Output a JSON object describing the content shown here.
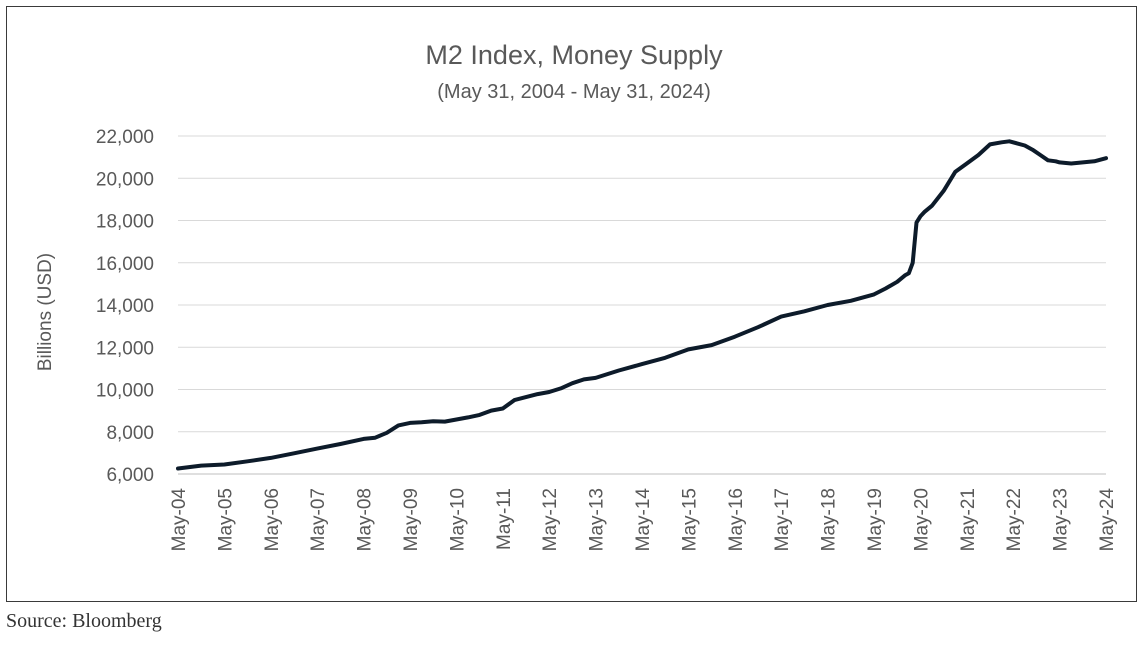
{
  "source": "Source: Bloomberg",
  "chart_data": {
    "type": "line",
    "title": "M2 Index, Money Supply",
    "subtitle": "(May 31, 2004 - May 31, 2024)",
    "ylabel": "Billions (USD)",
    "xlabel": "",
    "ylim": [
      6000,
      22000
    ],
    "yticks": [
      6000,
      8000,
      10000,
      12000,
      14000,
      16000,
      18000,
      20000,
      22000
    ],
    "ytick_labels": [
      "6,000",
      "8,000",
      "10,000",
      "12,000",
      "14,000",
      "16,000",
      "18,000",
      "20,000",
      "22,000"
    ],
    "xticks": [
      "May-04",
      "May-05",
      "May-06",
      "May-07",
      "May-08",
      "May-09",
      "May-10",
      "May-11",
      "May-12",
      "May-13",
      "May-14",
      "May-15",
      "May-16",
      "May-17",
      "May-18",
      "May-19",
      "May-20",
      "May-21",
      "May-22",
      "May-23",
      "May-24"
    ],
    "grid": true,
    "legend": "none",
    "color": "#0d1b2a",
    "series": [
      {
        "x": [
          "2004-05",
          "2004-11",
          "2005-05",
          "2005-11",
          "2006-05",
          "2006-11",
          "2007-05",
          "2007-11",
          "2008-05",
          "2008-08",
          "2008-11",
          "2009-02",
          "2009-05",
          "2009-08",
          "2009-11",
          "2010-02",
          "2010-05",
          "2010-08",
          "2010-11",
          "2011-02",
          "2011-05",
          "2011-08",
          "2011-11",
          "2012-02",
          "2012-05",
          "2012-08",
          "2012-11",
          "2013-02",
          "2013-05",
          "2013-11",
          "2014-05",
          "2014-11",
          "2015-05",
          "2015-11",
          "2016-05",
          "2016-11",
          "2017-05",
          "2017-11",
          "2018-05",
          "2018-11",
          "2019-05",
          "2019-08",
          "2019-11",
          "2020-01",
          "2020-02",
          "2020-03",
          "2020-04",
          "2020-05",
          "2020-06",
          "2020-08",
          "2020-11",
          "2021-02",
          "2021-05",
          "2021-08",
          "2021-11",
          "2022-02",
          "2022-04",
          "2022-06",
          "2022-08",
          "2022-10",
          "2022-12",
          "2023-02",
          "2023-04",
          "2023-05",
          "2023-08",
          "2023-11",
          "2024-02",
          "2024-05"
        ],
        "values": [
          6260,
          6400,
          6450,
          6600,
          6760,
          6980,
          7200,
          7420,
          7660,
          7720,
          7950,
          8300,
          8420,
          8450,
          8500,
          8480,
          8580,
          8680,
          8800,
          9000,
          9100,
          9500,
          9640,
          9780,
          9880,
          10050,
          10300,
          10480,
          10550,
          10900,
          11200,
          11500,
          11900,
          12100,
          12500,
          12950,
          13450,
          13700,
          14000,
          14200,
          14500,
          14780,
          15100,
          15400,
          15500,
          16000,
          17900,
          18200,
          18400,
          18700,
          19400,
          20300,
          20700,
          21100,
          21600,
          21700,
          21750,
          21650,
          21550,
          21350,
          21100,
          20850,
          20800,
          20750,
          20700,
          20750,
          20800,
          20950
        ]
      }
    ]
  }
}
